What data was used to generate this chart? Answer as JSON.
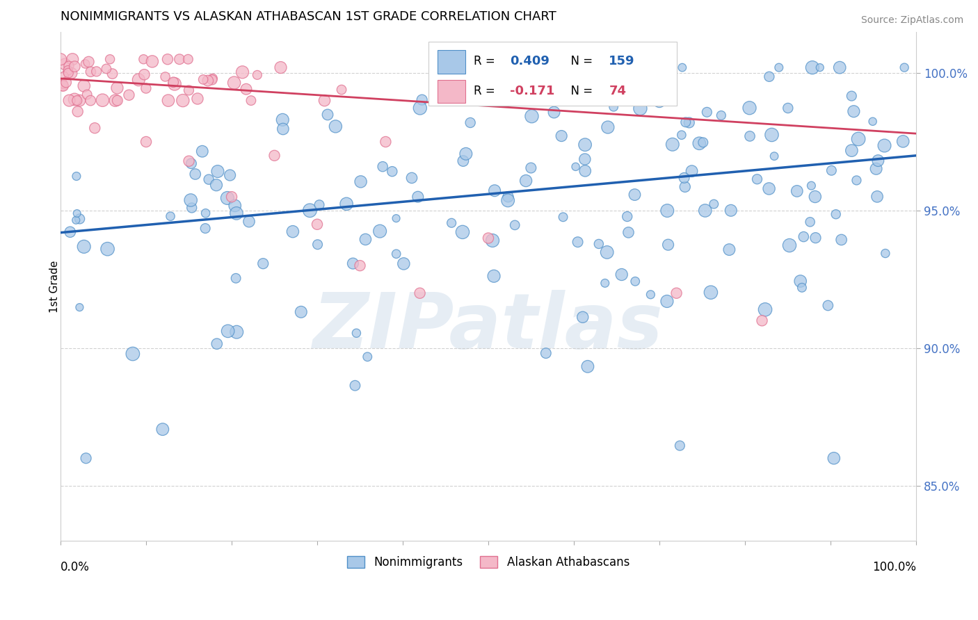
{
  "title": "NONIMMIGRANTS VS ALASKAN ATHABASCAN 1ST GRADE CORRELATION CHART",
  "source": "Source: ZipAtlas.com",
  "ylabel": "1st Grade",
  "blue_R": 0.409,
  "blue_N": 159,
  "pink_R": -0.171,
  "pink_N": 74,
  "blue_color": "#a8c8e8",
  "pink_color": "#f4b8c8",
  "blue_edge_color": "#5090c8",
  "pink_edge_color": "#e07090",
  "blue_line_color": "#2060b0",
  "pink_line_color": "#d04060",
  "legend_blue_label": "Nonimmigrants",
  "legend_pink_label": "Alaskan Athabascans",
  "watermark": "ZIPatlas",
  "background_color": "#ffffff",
  "grid_color": "#cccccc",
  "ytick_color": "#4472c4",
  "y_min": 0.83,
  "y_max": 1.015
}
